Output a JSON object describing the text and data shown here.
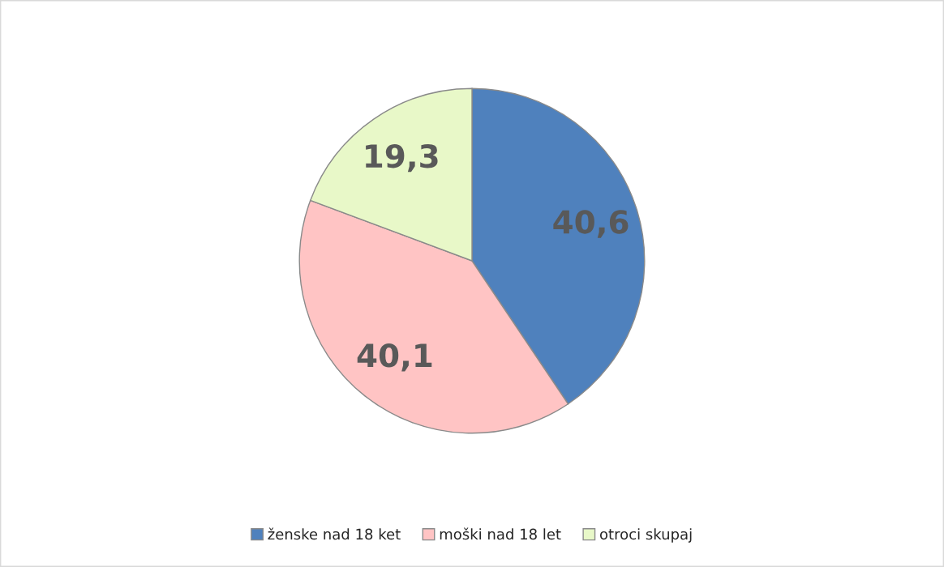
{
  "chart_data": {
    "type": "pie",
    "categories": [
      "ženske nad 18 ket",
      "moški nad 18 let",
      "otroci skupaj"
    ],
    "values": [
      40.6,
      40.1,
      19.3
    ],
    "colors": [
      "#4f81bd",
      "#ffc4c4",
      "#e8f8c8"
    ],
    "value_labels": [
      "40,6",
      "40,1",
      "19,3"
    ],
    "legend": "bottom"
  }
}
